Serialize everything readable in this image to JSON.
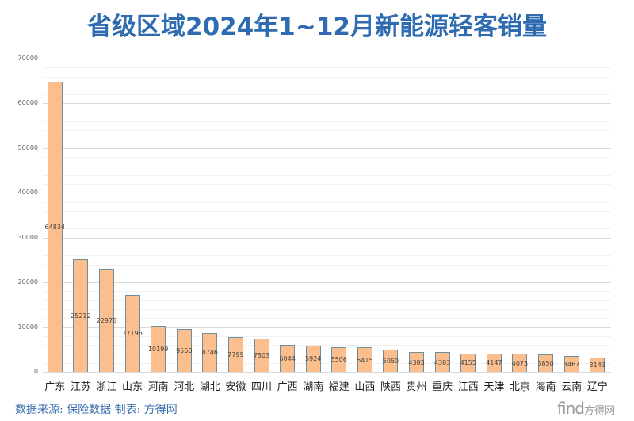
{
  "title": "省级区域2024年1~12月新能源轻客销量",
  "source": "数据来源: 保险数据 制表: 方得网",
  "logo": {
    "main": "find",
    "sub": "方得网"
  },
  "colors": {
    "title": "#2e6bb0",
    "bar_fill": "#fbbe8c",
    "bar_border": "#6b8fa0",
    "source": "#3d6fae"
  },
  "chart_data": {
    "type": "bar",
    "title": "省级区域2024年1~12月新能源轻客销量",
    "xlabel": "",
    "ylabel": "",
    "ylim": [
      0,
      70000
    ],
    "yticks": [
      0,
      10000,
      20000,
      30000,
      40000,
      50000,
      60000,
      70000
    ],
    "grid": true,
    "legend": null,
    "categories": [
      "广东",
      "江苏",
      "浙江",
      "山东",
      "河南",
      "河北",
      "湖北",
      "安徽",
      "四川",
      "广西",
      "湖南",
      "福建",
      "山西",
      "陕西",
      "贵州",
      "重庆",
      "江西",
      "天津",
      "北京",
      "海南",
      "云南",
      "辽宁"
    ],
    "values": [
      64834,
      25212,
      22978,
      17196,
      10199,
      9560,
      8746,
      7799,
      7503,
      6044,
      5924,
      5506,
      5415,
      5050,
      4383,
      4383,
      4155,
      4147,
      4073,
      3850,
      3467,
      3143
    ]
  }
}
